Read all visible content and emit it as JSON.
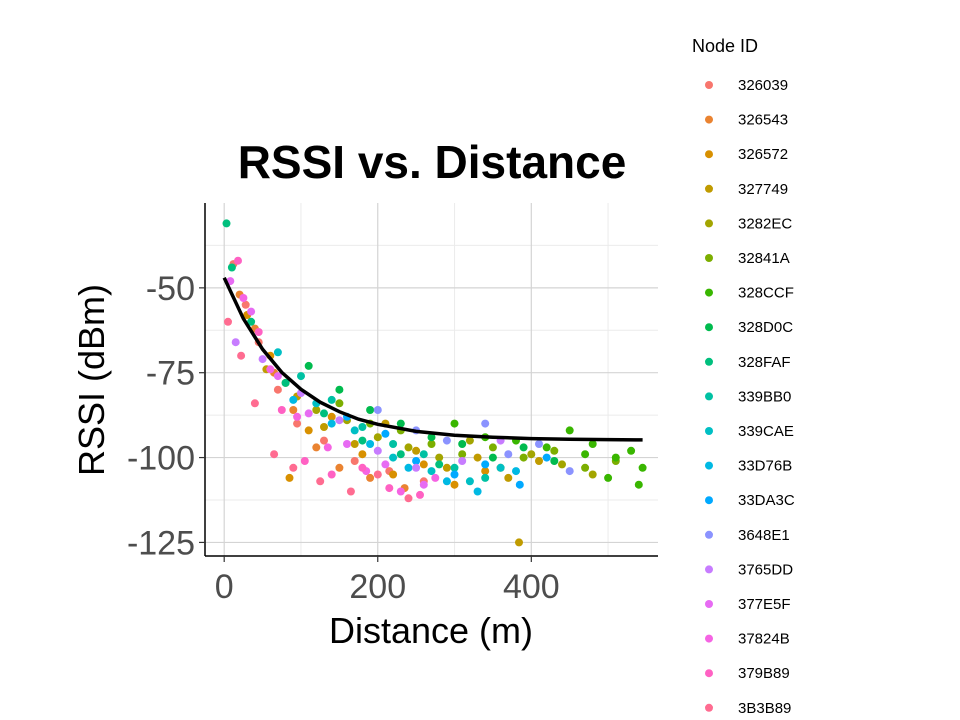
{
  "chart_data": {
    "type": "scatter",
    "title": "RSSI vs. Distance",
    "xlabel": "Distance (m)",
    "ylabel": "RSSI (dBm)",
    "xlim": [
      -25,
      565
    ],
    "ylim": [
      -129,
      -25
    ],
    "x_major_ticks": [
      0,
      200,
      400
    ],
    "x_minor_ticks": [
      100,
      300,
      500
    ],
    "y_major_ticks": [
      -50,
      -75,
      -100,
      -125
    ],
    "y_minor_ticks": [
      -37.5,
      -62.5,
      -87.5,
      -112.5
    ],
    "grid": true,
    "legend": {
      "title": "Node ID",
      "position": "right",
      "entries": [
        {
          "name": "326039",
          "color": "#F8766D"
        },
        {
          "name": "326543",
          "color": "#EA8331"
        },
        {
          "name": "326572",
          "color": "#D89000"
        },
        {
          "name": "327749",
          "color": "#C09B00"
        },
        {
          "name": "3282EC",
          "color": "#A3A500"
        },
        {
          "name": "32841A",
          "color": "#7CAE00"
        },
        {
          "name": "328CCF",
          "color": "#39B600"
        },
        {
          "name": "328D0C",
          "color": "#00BB4E"
        },
        {
          "name": "328FAF",
          "color": "#00BF7D"
        },
        {
          "name": "339BB0",
          "color": "#00C1A3"
        },
        {
          "name": "339CAE",
          "color": "#00BFC4"
        },
        {
          "name": "33D76B",
          "color": "#00B9E3"
        },
        {
          "name": "33DA3C",
          "color": "#00A9FF"
        },
        {
          "name": "3648E1",
          "color": "#8B93FF"
        },
        {
          "name": "3765DD",
          "color": "#C77CFF"
        },
        {
          "name": "377E5F",
          "color": "#E76BF3"
        },
        {
          "name": "37824B",
          "color": "#F564E3"
        },
        {
          "name": "379B89",
          "color": "#FF61C3"
        },
        {
          "name": "3B3B89",
          "color": "#FF6C91"
        }
      ]
    },
    "fit_curve": {
      "label": "exponential decay fit",
      "x": [
        0,
        25,
        50,
        75,
        100,
        125,
        150,
        175,
        200,
        250,
        300,
        350,
        400,
        450,
        500,
        545
      ],
      "y": [
        -47,
        -59.1,
        -68.1,
        -74.9,
        -79.9,
        -83.7,
        -86.5,
        -88.7,
        -90.2,
        -92.3,
        -93.4,
        -94.0,
        -94.4,
        -94.6,
        -94.7,
        -94.8
      ]
    },
    "series": [
      {
        "name": "326039",
        "points": [
          [
            12,
            -43
          ],
          [
            28,
            -55
          ],
          [
            45,
            -66
          ],
          [
            70,
            -80
          ],
          [
            95,
            -90
          ],
          [
            130,
            -95
          ],
          [
            170,
            -101
          ],
          [
            215,
            -104
          ],
          [
            260,
            -107
          ]
        ]
      },
      {
        "name": "326543",
        "points": [
          [
            20,
            -52
          ],
          [
            40,
            -62
          ],
          [
            65,
            -75
          ],
          [
            90,
            -86
          ],
          [
            120,
            -97
          ],
          [
            150,
            -103
          ],
          [
            190,
            -106
          ],
          [
            235,
            -109
          ]
        ]
      },
      {
        "name": "326572",
        "points": [
          [
            30,
            -58
          ],
          [
            60,
            -70
          ],
          [
            85,
            -106
          ],
          [
            110,
            -92
          ],
          [
            140,
            -88
          ],
          [
            180,
            -99
          ],
          [
            220,
            -105
          ],
          [
            260,
            -102
          ],
          [
            300,
            -108
          ],
          [
            340,
            -104
          ]
        ]
      },
      {
        "name": "327749",
        "points": [
          [
            55,
            -74
          ],
          [
            95,
            -82
          ],
          [
            130,
            -91
          ],
          [
            170,
            -96
          ],
          [
            210,
            -90
          ],
          [
            250,
            -98
          ],
          [
            290,
            -103
          ],
          [
            330,
            -100
          ],
          [
            370,
            -106
          ],
          [
            384,
            -125
          ],
          [
            410,
            -101
          ]
        ]
      },
      {
        "name": "3282EC",
        "points": [
          [
            80,
            -78
          ],
          [
            120,
            -86
          ],
          [
            160,
            -89
          ],
          [
            200,
            -94
          ],
          [
            240,
            -97
          ],
          [
            280,
            -100
          ],
          [
            320,
            -95
          ],
          [
            360,
            -103
          ],
          [
            400,
            -99
          ],
          [
            440,
            -102
          ],
          [
            480,
            -105
          ]
        ]
      },
      {
        "name": "32841A",
        "points": [
          [
            150,
            -84
          ],
          [
            190,
            -90
          ],
          [
            230,
            -92
          ],
          [
            270,
            -96
          ],
          [
            310,
            -99
          ],
          [
            350,
            -97
          ],
          [
            390,
            -100
          ],
          [
            430,
            -98
          ],
          [
            470,
            -103
          ],
          [
            510,
            -101
          ]
        ]
      },
      {
        "name": "328CCF",
        "points": [
          [
            300,
            -90
          ],
          [
            340,
            -94
          ],
          [
            380,
            -95
          ],
          [
            420,
            -97
          ],
          [
            450,
            -92
          ],
          [
            480,
            -96
          ],
          [
            510,
            -100
          ],
          [
            530,
            -98
          ],
          [
            545,
            -103
          ],
          [
            540,
            -108
          ],
          [
            500,
            -106
          ],
          [
            470,
            -99
          ]
        ]
      },
      {
        "name": "328D0C",
        "points": [
          [
            110,
            -73
          ],
          [
            150,
            -80
          ],
          [
            190,
            -86
          ],
          [
            230,
            -90
          ],
          [
            270,
            -94
          ],
          [
            310,
            -96
          ],
          [
            350,
            -100
          ],
          [
            390,
            -97
          ],
          [
            430,
            -101
          ]
        ]
      },
      {
        "name": "328FAF",
        "points": [
          [
            3,
            -31
          ],
          [
            10,
            -44
          ],
          [
            35,
            -60
          ],
          [
            80,
            -78
          ],
          [
            130,
            -87
          ],
          [
            180,
            -95
          ],
          [
            230,
            -99
          ],
          [
            280,
            -102
          ]
        ]
      },
      {
        "name": "339BB0",
        "points": [
          [
            100,
            -76
          ],
          [
            140,
            -83
          ],
          [
            180,
            -91
          ],
          [
            220,
            -96
          ],
          [
            260,
            -99
          ],
          [
            300,
            -103
          ],
          [
            340,
            -106
          ]
        ]
      },
      {
        "name": "339CAE",
        "points": [
          [
            70,
            -69
          ],
          [
            120,
            -84
          ],
          [
            170,
            -92
          ],
          [
            220,
            -100
          ],
          [
            270,
            -104
          ],
          [
            320,
            -107
          ],
          [
            360,
            -103
          ]
        ]
      },
      {
        "name": "33D76B",
        "points": [
          [
            90,
            -83
          ],
          [
            140,
            -90
          ],
          [
            190,
            -96
          ],
          [
            240,
            -103
          ],
          [
            290,
            -107
          ],
          [
            330,
            -110
          ],
          [
            380,
            -104
          ]
        ]
      },
      {
        "name": "33DA3C",
        "points": [
          [
            160,
            -88
          ],
          [
            210,
            -93
          ],
          [
            250,
            -101
          ],
          [
            300,
            -105
          ],
          [
            340,
            -102
          ],
          [
            385,
            -108
          ],
          [
            420,
            -100
          ]
        ]
      },
      {
        "name": "3648E1",
        "points": [
          [
            200,
            -86
          ],
          [
            250,
            -92
          ],
          [
            290,
            -95
          ],
          [
            340,
            -90
          ],
          [
            370,
            -99
          ],
          [
            410,
            -96
          ],
          [
            450,
            -104
          ]
        ]
      },
      {
        "name": "3765DD",
        "points": [
          [
            15,
            -66
          ],
          [
            50,
            -71
          ],
          [
            100,
            -81
          ],
          [
            150,
            -89
          ],
          [
            200,
            -98
          ],
          [
            250,
            -103
          ],
          [
            310,
            -101
          ],
          [
            360,
            -95
          ]
        ]
      },
      {
        "name": "377E5F",
        "points": [
          [
            8,
            -48
          ],
          [
            35,
            -57
          ],
          [
            70,
            -76
          ],
          [
            110,
            -87
          ],
          [
            160,
            -96
          ],
          [
            210,
            -102
          ],
          [
            260,
            -108
          ]
        ]
      },
      {
        "name": "37824B",
        "points": [
          [
            25,
            -53
          ],
          [
            60,
            -74
          ],
          [
            95,
            -88
          ],
          [
            135,
            -97
          ],
          [
            185,
            -104
          ],
          [
            230,
            -110
          ],
          [
            275,
            -106
          ]
        ]
      },
      {
        "name": "379B89",
        "points": [
          [
            18,
            -42
          ],
          [
            45,
            -63
          ],
          [
            75,
            -86
          ],
          [
            105,
            -101
          ],
          [
            140,
            -105
          ],
          [
            180,
            -103
          ],
          [
            215,
            -109
          ],
          [
            255,
            -111
          ]
        ]
      },
      {
        "name": "3B3B89",
        "points": [
          [
            5,
            -60
          ],
          [
            22,
            -70
          ],
          [
            40,
            -84
          ],
          [
            65,
            -99
          ],
          [
            90,
            -103
          ],
          [
            125,
            -107
          ],
          [
            165,
            -110
          ],
          [
            200,
            -105
          ],
          [
            240,
            -112
          ]
        ]
      }
    ]
  }
}
